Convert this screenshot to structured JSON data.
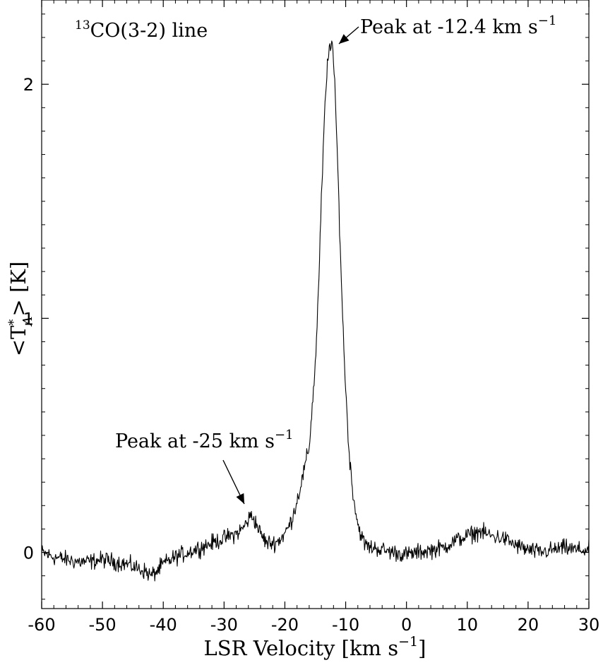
{
  "chart_data": {
    "type": "line",
    "title": "",
    "xlabel": {
      "main": "LSR Velocity [km s",
      "sup": "−1",
      "close": "]"
    },
    "ylabel": {
      "pre": "<T",
      "sup": "*",
      "sub": "A",
      "post": "> [K]"
    },
    "xlim": [
      -60,
      30
    ],
    "ylim": [
      -0.24,
      2.36
    ],
    "x_ticks": [
      "-60",
      "-50",
      "-40",
      "-30",
      "-20",
      "-10",
      "0",
      "10",
      "20",
      "30"
    ],
    "y_ticks": [
      "0",
      "1",
      "2"
    ],
    "grid": false,
    "legend": "none",
    "line_color": "#000000",
    "annotations": {
      "line_label": {
        "sup": "13",
        "text": "CO(3-2) line"
      },
      "peak_main": {
        "text": "Peak at -12.4 km s",
        "sup": "−1",
        "x": -12.4,
        "y": 2.18
      },
      "peak_secondary": {
        "text": "Peak at -25 km s",
        "sup": "−1",
        "x": -25.5,
        "y": 0.18
      }
    },
    "series": [
      {
        "x": [
          -60,
          -58,
          -56,
          -54,
          -52,
          -50,
          -48,
          -46,
          -44,
          -43,
          -42,
          -41,
          -40,
          -38,
          -36,
          -34,
          -32,
          -30,
          -28,
          -27,
          -26,
          -25.5,
          -25,
          -24,
          -23,
          -22,
          -21,
          -20,
          -19,
          -18,
          -17,
          -16,
          -15,
          -14.5,
          -14,
          -13.5,
          -13,
          -12.6,
          -12.4,
          -12.2,
          -12,
          -11.5,
          -11,
          -10.5,
          -10,
          -9.5,
          -9,
          -8.5,
          -8,
          -7,
          -6,
          -5,
          -4,
          -2,
          0,
          2,
          4,
          6,
          8,
          10,
          12,
          14,
          16,
          18,
          20,
          22,
          24,
          26,
          28,
          30
        ],
        "y": [
          0.0,
          -0.02,
          -0.03,
          -0.04,
          -0.04,
          -0.03,
          -0.04,
          -0.05,
          -0.07,
          -0.08,
          -0.1,
          -0.08,
          -0.05,
          -0.02,
          0.0,
          0.02,
          0.04,
          0.06,
          0.08,
          0.1,
          0.14,
          0.16,
          0.14,
          0.08,
          0.04,
          0.04,
          0.05,
          0.08,
          0.13,
          0.22,
          0.33,
          0.45,
          0.8,
          1.1,
          1.5,
          1.85,
          2.08,
          2.17,
          2.18,
          2.17,
          2.1,
          1.8,
          1.4,
          1.0,
          0.7,
          0.45,
          0.3,
          0.2,
          0.12,
          0.04,
          0.02,
          0.02,
          0.01,
          0.0,
          -0.01,
          0.0,
          0.01,
          0.02,
          0.05,
          0.07,
          0.09,
          0.07,
          0.06,
          0.03,
          0.01,
          0.0,
          0.01,
          0.02,
          0.01,
          0.01
        ]
      }
    ]
  }
}
